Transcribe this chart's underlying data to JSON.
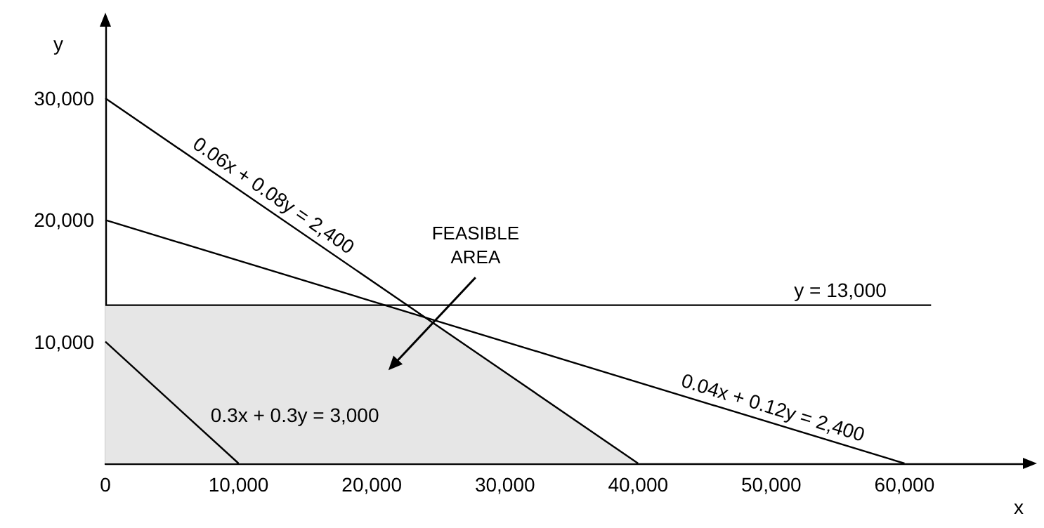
{
  "chart_data": {
    "type": "line",
    "xlabel": "x",
    "ylabel": "y",
    "xlim": [
      0,
      69000
    ],
    "ylim": [
      0,
      36000
    ],
    "xticks": [
      {
        "value": 0,
        "label": "0"
      },
      {
        "value": 10000,
        "label": "10,000"
      },
      {
        "value": 20000,
        "label": "20,000"
      },
      {
        "value": 30000,
        "label": "30,000"
      },
      {
        "value": 40000,
        "label": "40,000"
      },
      {
        "value": 50000,
        "label": "50,000"
      },
      {
        "value": 60000,
        "label": "60,000"
      }
    ],
    "yticks": [
      {
        "value": 10000,
        "label": "10,000"
      },
      {
        "value": 20000,
        "label": "20,000"
      },
      {
        "value": 30000,
        "label": "30,000"
      }
    ],
    "grid": false,
    "legend": false,
    "marker": "none",
    "line_style": "solid",
    "series": [
      {
        "type": "area",
        "name": "FEASIBLE\nAREA",
        "color": "#e6e6e6",
        "x": [
          0,
          21000,
          24000,
          40000
        ],
        "values": [
          13000,
          13000,
          12000,
          0
        ]
      },
      {
        "name": "0.06x + 0.08y = 2,400",
        "color": "#000000",
        "x": [
          0,
          40000
        ],
        "values": [
          30000,
          0
        ]
      },
      {
        "name": "0.04x + 0.12y = 2,400",
        "color": "#000000",
        "x": [
          0,
          60000
        ],
        "values": [
          20000,
          0
        ]
      },
      {
        "name": "y = 13,000",
        "color": "#000000",
        "x": [
          0,
          62000
        ],
        "values": [
          13000,
          13000
        ]
      },
      {
        "name": "0.3x + 0.3y = 3,000",
        "color": "#000000",
        "x": [
          0,
          10000
        ],
        "values": [
          10000,
          0
        ]
      }
    ]
  }
}
